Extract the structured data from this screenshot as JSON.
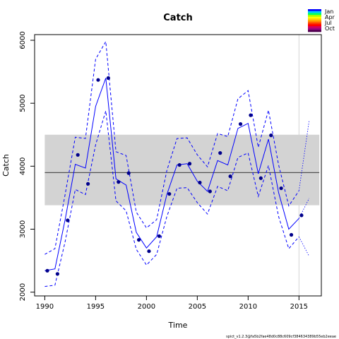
{
  "chart_data": {
    "type": "line",
    "title": "Catch",
    "xlabel": "Time",
    "ylabel": "Catch",
    "xlim": [
      1989,
      2017.2
    ],
    "ylim": [
      1940,
      6090
    ],
    "x_ticks": [
      1990,
      1995,
      2000,
      2005,
      2010,
      2015
    ],
    "y_ticks": [
      2000,
      3000,
      4000,
      5000,
      6000
    ],
    "grid": false,
    "observed": {
      "name": "observed catch",
      "x": [
        1990.25,
        1991.25,
        1992.25,
        1993.25,
        1994.25,
        1995.25,
        1996.25,
        1997.25,
        1998.25,
        1999.25,
        2000.25,
        2001.25,
        2002.25,
        2003.25,
        2004.25,
        2005.25,
        2006.25,
        2007.25,
        2008.25,
        2009.25,
        2010.25,
        2011.25,
        2012.25,
        2013.25,
        2014.25,
        2015.25
      ],
      "y": [
        2340,
        2290,
        3140,
        4180,
        3720,
        5370,
        5400,
        3750,
        3890,
        2830,
        2650,
        2890,
        3560,
        4020,
        4040,
        3740,
        3600,
        4210,
        3840,
        4670,
        4810,
        3810,
        4490,
        3650,
        2910,
        3220
      ],
      "color": "#00008B"
    },
    "predicted": {
      "name": "predicted catch",
      "x": [
        1990,
        1991,
        1992,
        1993,
        1994,
        1995,
        1996,
        1997,
        1998,
        1999,
        2000,
        2001,
        2002,
        2003,
        2004,
        2005,
        2006,
        2007,
        2008,
        2009,
        2010,
        2011,
        2012,
        2013,
        2014,
        2015
      ],
      "y": [
        2340,
        2370,
        3150,
        4030,
        3970,
        4950,
        5400,
        3800,
        3700,
        2950,
        2700,
        2880,
        3550,
        4020,
        4040,
        3760,
        3600,
        4090,
        4020,
        4600,
        4680,
        3880,
        4430,
        3580,
        3000,
        3170
      ],
      "color": "#0000FF"
    },
    "ci_upper": {
      "x": [
        1990,
        1991,
        1992,
        1993,
        1994,
        1995,
        1996,
        1997,
        1998,
        1999,
        2000,
        2001,
        2002,
        2003,
        2004,
        2005,
        2006,
        2007,
        2008,
        2009,
        2010,
        2011,
        2012,
        2013,
        2014,
        2015
      ],
      "y": [
        2600,
        2690,
        3550,
        4460,
        4440,
        5700,
        5980,
        4230,
        4170,
        3270,
        3020,
        3150,
        3930,
        4440,
        4450,
        4180,
        3990,
        4520,
        4470,
        5070,
        5200,
        4300,
        4890,
        4020,
        3370,
        3610
      ]
    },
    "ci_lower": {
      "x": [
        1990,
        1991,
        1992,
        1993,
        1994,
        1995,
        1996,
        1997,
        1998,
        1999,
        2000,
        2001,
        2002,
        2003,
        2004,
        2005,
        2006,
        2007,
        2008,
        2009,
        2010,
        2011,
        2012,
        2013,
        2014,
        2015
      ],
      "y": [
        2090,
        2110,
        2800,
        3630,
        3550,
        4340,
        4880,
        3450,
        3290,
        2680,
        2430,
        2600,
        3200,
        3650,
        3660,
        3420,
        3240,
        3680,
        3610,
        4140,
        4210,
        3520,
        4010,
        3200,
        2690,
        2880
      ]
    },
    "forecast": {
      "x": [
        2015,
        2016
      ],
      "y": [
        3170,
        3490
      ],
      "upper": [
        3610,
        4720
      ],
      "lower": [
        2880,
        2570
      ]
    },
    "mean_line": 3900,
    "band": {
      "xmin": 1990,
      "xmax": 2017,
      "ymin": 3380,
      "ymax": 4500,
      "color": "#D3D3D3"
    },
    "vertical_line": {
      "x": 2015,
      "color": "#D3D3D3"
    },
    "legend": {
      "placement": "top-right",
      "labels": [
        "Jan",
        "Apr",
        "Jul",
        "Oct"
      ],
      "colors": [
        "#0000FF",
        "#00C8FF",
        "#00FF64",
        "#A0FF00",
        "#FFFF00",
        "#FFC800",
        "#FF8C00",
        "#FF3C00",
        "#FF0000",
        "#D2005A",
        "#A00082",
        "#500050"
      ]
    },
    "footer": "spict_v1.2.3@fa5b2fae48d0c88c609cf384634389b55eb2eeae"
  }
}
